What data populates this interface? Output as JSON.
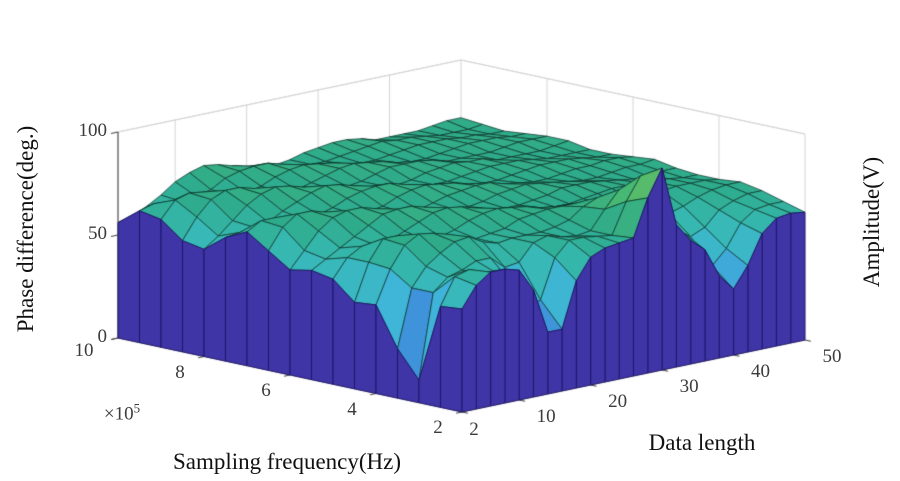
{
  "figure": {
    "background": "#ffffff",
    "axis_line_color": "#4a4a4a",
    "grid_color": "#d6d6d6",
    "tick_label_color": "#3b3b3b",
    "title_color": "#111111"
  },
  "axes": {
    "z": {
      "label": "Phase difference(deg.)",
      "ticks": [
        0,
        50,
        100
      ],
      "range": [
        0,
        100
      ]
    },
    "x": {
      "label": "Data length",
      "ticks": [
        2,
        10,
        20,
        30,
        40,
        50
      ],
      "range": [
        2,
        50
      ]
    },
    "y": {
      "label": "Sampling frequency(Hz)",
      "ticks": [
        10,
        8,
        6,
        4,
        2
      ],
      "range": [
        2,
        10
      ],
      "exponent": {
        "base": "×10",
        "power": "5"
      }
    },
    "right_label": "Amplitude(V)"
  },
  "chart_data": {
    "type": "surface",
    "title": "",
    "x_name": "Data length",
    "x_values": [
      2,
      4,
      6,
      8,
      10,
      12,
      14,
      16,
      18,
      20,
      22,
      24,
      26,
      28,
      30,
      32,
      34,
      36,
      38,
      40,
      42,
      44,
      46,
      48,
      50
    ],
    "y_name": "Sampling frequency (x10^5 Hz)",
    "y_values": [
      2,
      2.5,
      3,
      3.5,
      4,
      4.5,
      5,
      5.5,
      6,
      6.5,
      7,
      7.5,
      8,
      8.5,
      9,
      9.5,
      10
    ],
    "z_name": "Phase difference (deg.)",
    "z_range": [
      0,
      100
    ],
    "grid": true,
    "legend": "none",
    "z_values": [
      [
        50,
        60,
        65,
        65,
        63,
        52,
        30,
        30,
        52,
        62,
        65,
        66,
        67,
        85,
        98,
        69,
        60,
        54,
        40,
        32,
        42,
        56,
        62,
        63,
        62
      ],
      [
        49,
        62,
        64,
        61,
        59,
        53,
        39,
        42,
        61,
        68,
        68,
        67,
        66,
        81,
        92,
        71,
        65,
        60,
        49,
        41,
        48,
        59,
        64,
        65,
        65
      ],
      [
        11,
        52,
        58,
        60,
        63,
        63,
        57,
        58,
        66,
        68,
        66,
        65,
        66,
        75,
        83,
        72,
        69,
        65,
        58,
        53,
        56,
        63,
        66,
        68,
        68
      ],
      [
        24,
        52,
        61,
        66,
        70,
        71,
        67,
        65,
        66,
        66,
        66,
        67,
        69,
        74,
        77,
        72,
        69,
        67,
        64,
        62,
        64,
        67,
        69,
        70,
        70
      ],
      [
        43,
        59,
        69,
        73,
        72,
        70,
        66,
        65,
        66,
        67,
        70,
        71,
        72,
        72,
        72,
        69,
        68,
        68,
        68,
        68,
        69,
        70,
        70,
        70,
        69
      ],
      [
        42,
        60,
        70,
        70,
        67,
        65,
        65,
        67,
        70,
        72,
        73,
        72,
        71,
        69,
        68,
        68,
        69,
        70,
        71,
        71,
        71,
        70,
        70,
        69,
        69
      ],
      [
        51,
        60,
        64,
        63,
        64,
        67,
        70,
        73,
        74,
        73,
        71,
        69,
        68,
        68,
        69,
        70,
        72,
        72,
        72,
        71,
        70,
        69,
        69,
        70,
        70
      ],
      [
        53,
        57,
        61,
        65,
        69,
        73,
        74,
        74,
        72,
        69,
        68,
        68,
        69,
        71,
        72,
        73,
        72,
        71,
        70,
        69,
        69,
        70,
        71,
        71,
        72
      ],
      [
        51,
        59,
        67,
        72,
        74,
        74,
        72,
        69,
        67,
        67,
        69,
        71,
        72,
        73,
        73,
        71,
        70,
        69,
        69,
        70,
        71,
        71,
        72,
        72,
        71
      ],
      [
        58,
        68,
        73,
        73,
        71,
        68,
        67,
        67,
        68,
        71,
        73,
        74,
        73,
        72,
        70,
        69,
        69,
        70,
        71,
        72,
        72,
        72,
        71,
        70,
        70
      ],
      [
        65,
        69,
        69,
        67,
        65,
        66,
        68,
        71,
        73,
        74,
        74,
        72,
        70,
        69,
        69,
        70,
        71,
        72,
        72,
        72,
        71,
        70,
        70,
        70,
        70
      ],
      [
        60,
        61,
        62,
        63,
        67,
        70,
        73,
        75,
        74,
        72,
        70,
        69,
        68,
        69,
        71,
        72,
        73,
        72,
        72,
        70,
        70,
        70,
        70,
        71,
        72
      ],
      [
        52,
        57,
        63,
        69,
        73,
        75,
        74,
        72,
        70,
        68,
        68,
        69,
        71,
        73,
        73,
        73,
        72,
        70,
        70,
        70,
        70,
        71,
        72,
        72,
        72
      ],
      [
        54,
        64,
        71,
        74,
        74,
        72,
        69,
        67,
        67,
        69,
        71,
        73,
        74,
        73,
        72,
        70,
        69,
        69,
        70,
        71,
        72,
        72,
        72,
        71,
        71
      ],
      [
        62,
        70,
        72,
        71,
        68,
        66,
        66,
        68,
        71,
        73,
        74,
        73,
        72,
        70,
        69,
        69,
        70,
        71,
        72,
        72,
        72,
        71,
        71,
        70,
        70
      ],
      [
        64,
        66,
        65,
        64,
        65,
        67,
        71,
        73,
        74,
        74,
        72,
        70,
        69,
        69,
        70,
        71,
        72,
        73,
        72,
        72,
        71,
        70,
        70,
        70,
        71
      ],
      [
        56,
        58,
        61,
        65,
        70,
        73,
        75,
        74,
        72,
        70,
        68,
        68,
        69,
        71,
        72,
        73,
        73,
        72,
        70,
        70,
        70,
        70,
        71,
        72,
        72
      ]
    ],
    "colormap": {
      "stops": [
        [
          0.0,
          "#3C30A0"
        ],
        [
          0.15,
          "#3E41C8"
        ],
        [
          0.3,
          "#3E82DA"
        ],
        [
          0.44,
          "#3FB5D9"
        ],
        [
          0.58,
          "#37B9B4"
        ],
        [
          0.7,
          "#2EAB8A"
        ],
        [
          0.82,
          "#46B776"
        ],
        [
          1.0,
          "#70C55D"
        ]
      ]
    },
    "wall_color": "#3F35A7",
    "wall_edge_color": "#1C1464",
    "mesh_edge_color": "rgba(10,48,38,0.88)"
  }
}
